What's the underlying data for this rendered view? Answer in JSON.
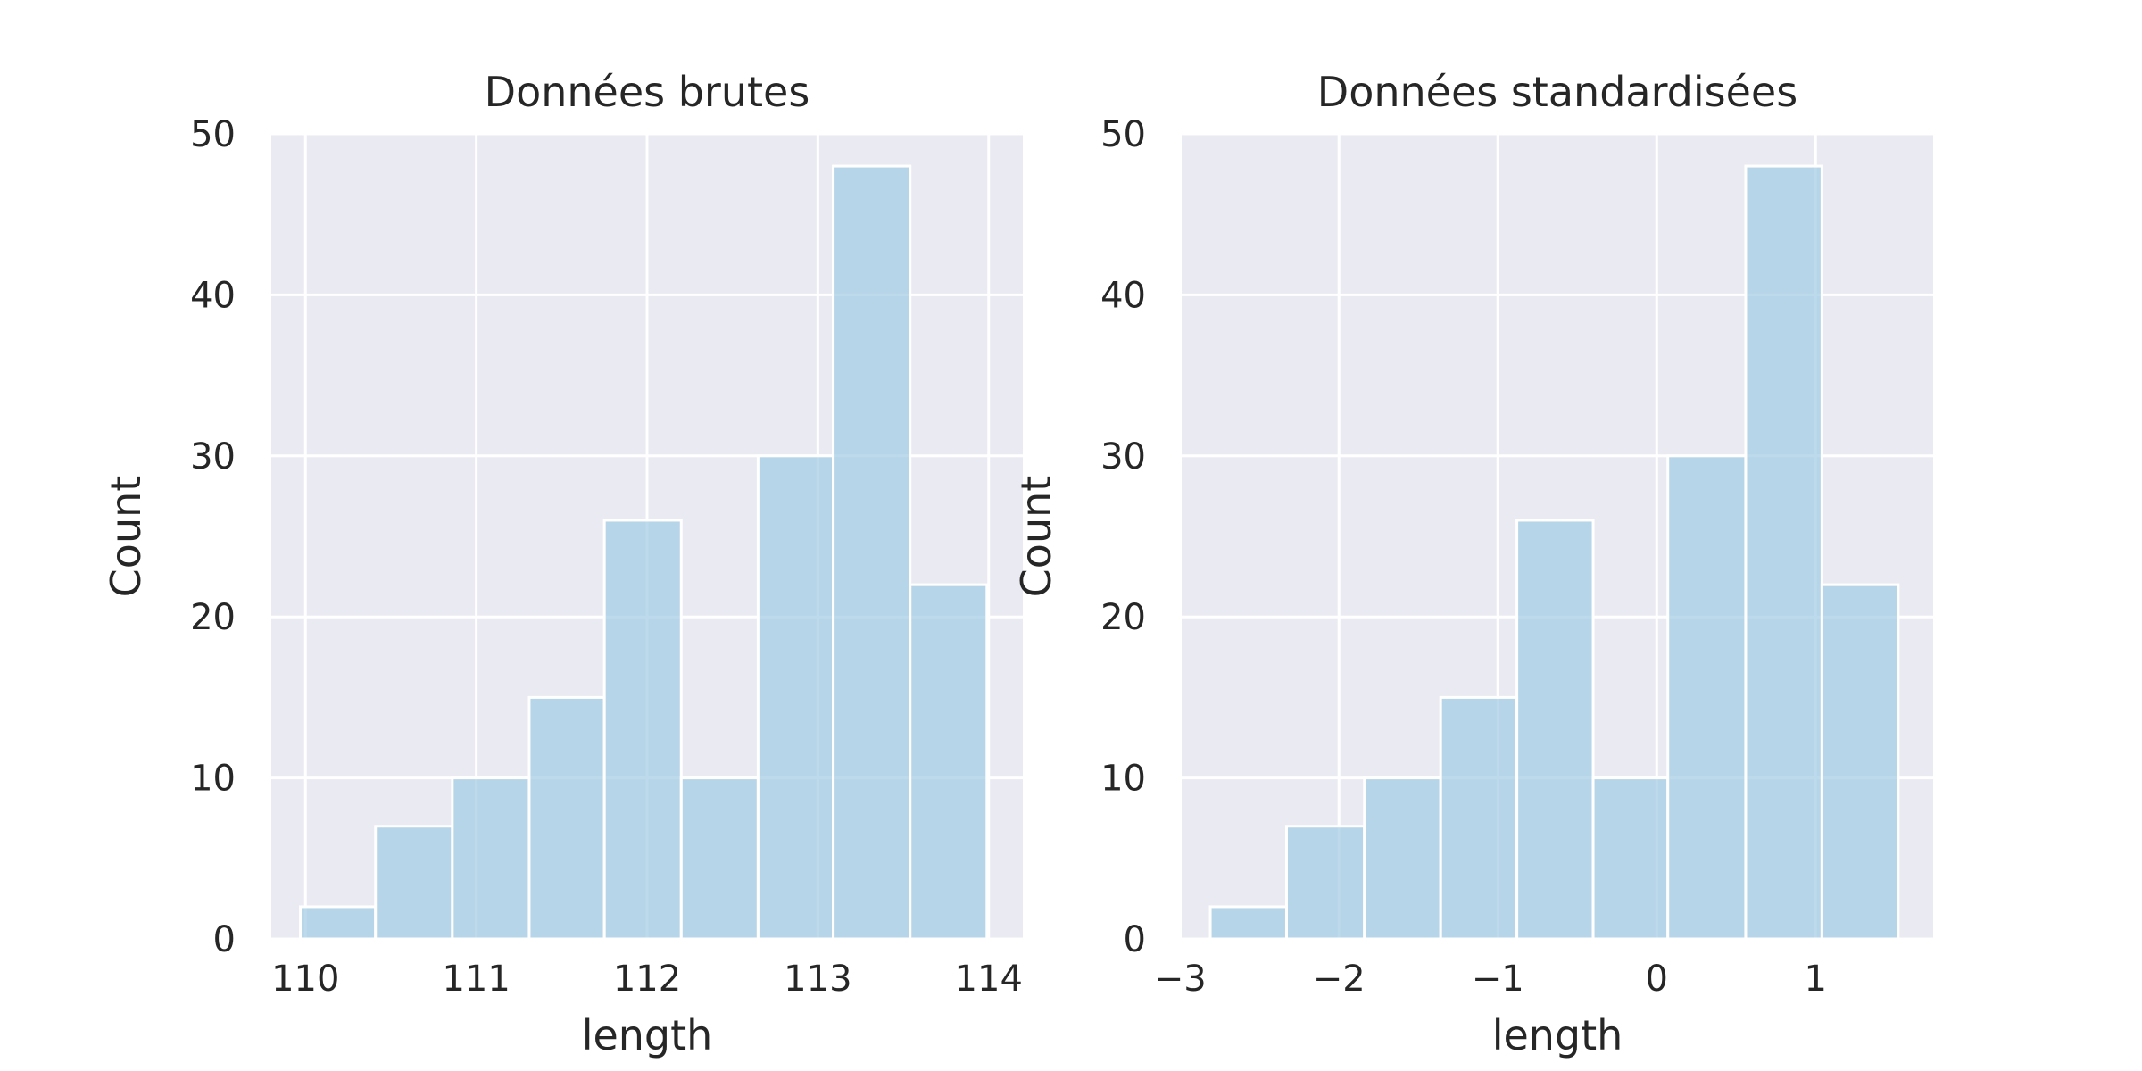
{
  "chart_data": [
    {
      "type": "bar",
      "title": "Données brutes",
      "xlabel": "length",
      "ylabel": "Count",
      "xlim": [
        109.8,
        114.2
      ],
      "ylim": [
        0,
        50
      ],
      "xticks": [
        110,
        111,
        112,
        113,
        114
      ],
      "xtick_labels": [
        "110",
        "111",
        "112",
        "113",
        "114"
      ],
      "yticks": [
        0,
        10,
        20,
        30,
        40,
        50
      ],
      "ytick_labels": [
        "0",
        "10",
        "20",
        "30",
        "40",
        "50"
      ],
      "bins": [
        {
          "x0": 109.97,
          "x1": 110.41,
          "count": 2
        },
        {
          "x0": 110.41,
          "x1": 110.86,
          "count": 7
        },
        {
          "x0": 110.86,
          "x1": 111.31,
          "count": 10
        },
        {
          "x0": 111.31,
          "x1": 111.75,
          "count": 15
        },
        {
          "x0": 111.75,
          "x1": 112.2,
          "count": 26
        },
        {
          "x0": 112.2,
          "x1": 112.65,
          "count": 10
        },
        {
          "x0": 112.65,
          "x1": 113.09,
          "count": 30
        },
        {
          "x0": 113.09,
          "x1": 113.54,
          "count": 48
        },
        {
          "x0": 113.54,
          "x1": 113.99,
          "count": 22
        }
      ],
      "grid": true,
      "bar_color": "#a6cde4",
      "bar_edge_color": "#ffffff",
      "background_color": "#eaeaf2"
    },
    {
      "type": "bar",
      "title": "Données standardisées",
      "xlabel": "length",
      "ylabel": "Count",
      "xlim": [
        -2.99,
        1.74
      ],
      "ylim": [
        0,
        50
      ],
      "xticks": [
        -3,
        -2,
        -1,
        0,
        1
      ],
      "xtick_labels": [
        "−3",
        "−2",
        "−1",
        "0",
        "1"
      ],
      "yticks": [
        0,
        10,
        20,
        30,
        40,
        50
      ],
      "ytick_labels": [
        "0",
        "10",
        "20",
        "30",
        "40",
        "50"
      ],
      "bins": [
        {
          "x0": -2.81,
          "x1": -2.33,
          "count": 2
        },
        {
          "x0": -2.33,
          "x1": -1.84,
          "count": 7
        },
        {
          "x0": -1.84,
          "x1": -1.36,
          "count": 10
        },
        {
          "x0": -1.36,
          "x1": -0.88,
          "count": 15
        },
        {
          "x0": -0.88,
          "x1": -0.4,
          "count": 26
        },
        {
          "x0": -0.4,
          "x1": 0.07,
          "count": 10
        },
        {
          "x0": 0.07,
          "x1": 0.56,
          "count": 30
        },
        {
          "x0": 0.56,
          "x1": 1.04,
          "count": 48
        },
        {
          "x0": 1.04,
          "x1": 1.52,
          "count": 22
        }
      ],
      "grid": true,
      "bar_color": "#a6cde4",
      "bar_edge_color": "#ffffff",
      "background_color": "#eaeaf2"
    }
  ]
}
